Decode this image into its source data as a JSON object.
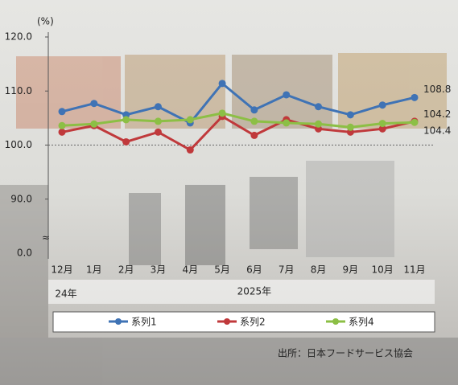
{
  "chart_data": {
    "type": "line",
    "unit_label": "(%)",
    "categories": [
      "12月",
      "1月",
      "2月",
      "3月",
      "4月",
      "5月",
      "6月",
      "7月",
      "8月",
      "9月",
      "10月",
      "11月"
    ],
    "year_labels": [
      "24年",
      "2025年"
    ],
    "series": [
      {
        "name": "系列1",
        "color": "#3f73b5",
        "values": [
          106.2,
          107.7,
          105.6,
          107.1,
          104.1,
          111.4,
          106.5,
          109.3,
          107.1,
          105.6,
          107.4,
          108.8
        ]
      },
      {
        "name": "系列2",
        "color": "#c0393b",
        "values": [
          102.4,
          103.6,
          100.6,
          102.4,
          99.1,
          105.3,
          101.8,
          104.7,
          103.0,
          102.4,
          103.0,
          104.4
        ]
      },
      {
        "name": "系列4",
        "color": "#8cbf45",
        "values": [
          103.6,
          103.9,
          104.7,
          104.4,
          104.7,
          105.9,
          104.4,
          104.1,
          103.9,
          103.3,
          104.0,
          104.2
        ]
      }
    ],
    "ylim": [
      80,
      120
    ],
    "yticks": [
      {
        "value": 90,
        "label": "90.0"
      },
      {
        "value": 100,
        "label": "100.0"
      },
      {
        "value": 110,
        "label": "110.0"
      },
      {
        "value": 120,
        "label": "120.0"
      }
    ],
    "axis_break_label": "0.0",
    "axis_break_symbol": "≈",
    "reference_line": 100,
    "source": "出所：日本フードサービス協会"
  }
}
